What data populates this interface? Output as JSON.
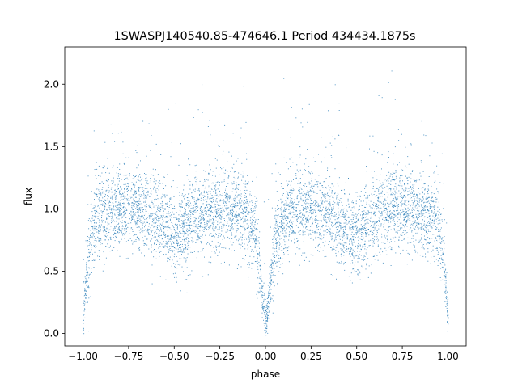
{
  "chart_data": {
    "type": "scatter",
    "title": "1SWASPJ140540.85-474646.1 Period 434434.1875s",
    "xlabel": "phase",
    "ylabel": "flux",
    "xlim": [
      -1.1,
      1.1
    ],
    "ylim": [
      -0.1,
      2.3
    ],
    "x_ticks": [
      -1.0,
      -0.75,
      -0.5,
      -0.25,
      0.0,
      0.25,
      0.5,
      0.75,
      1.0
    ],
    "x_tick_labels": [
      "−1.00",
      "−0.75",
      "−0.50",
      "−0.25",
      "0.00",
      "0.25",
      "0.50",
      "0.75",
      "1.00"
    ],
    "y_ticks": [
      0.0,
      0.5,
      1.0,
      1.5,
      2.0
    ],
    "y_tick_labels": [
      "0.0",
      "0.5",
      "1.0",
      "1.5",
      "2.0"
    ],
    "grid": false,
    "point_color": "#1f77b4",
    "light_curve_profile": {
      "x": [
        -1.0,
        -0.98,
        -0.95,
        -0.9,
        -0.8,
        -0.7,
        -0.6,
        -0.5,
        -0.45,
        -0.4,
        -0.3,
        -0.2,
        -0.1,
        -0.05,
        -0.02,
        0.0,
        0.02,
        0.05,
        0.1,
        0.2,
        0.3,
        0.4,
        0.45,
        0.5,
        0.6,
        0.7,
        0.8,
        0.9,
        0.95,
        0.98,
        1.0
      ],
      "y": [
        0.1,
        0.5,
        0.85,
        0.95,
        1.0,
        1.02,
        0.93,
        0.78,
        0.8,
        0.92,
        1.0,
        1.0,
        0.95,
        0.75,
        0.3,
        0.1,
        0.3,
        0.75,
        0.95,
        1.0,
        0.98,
        0.88,
        0.8,
        0.78,
        0.92,
        1.02,
        1.0,
        0.95,
        0.85,
        0.5,
        0.1
      ]
    }
  }
}
